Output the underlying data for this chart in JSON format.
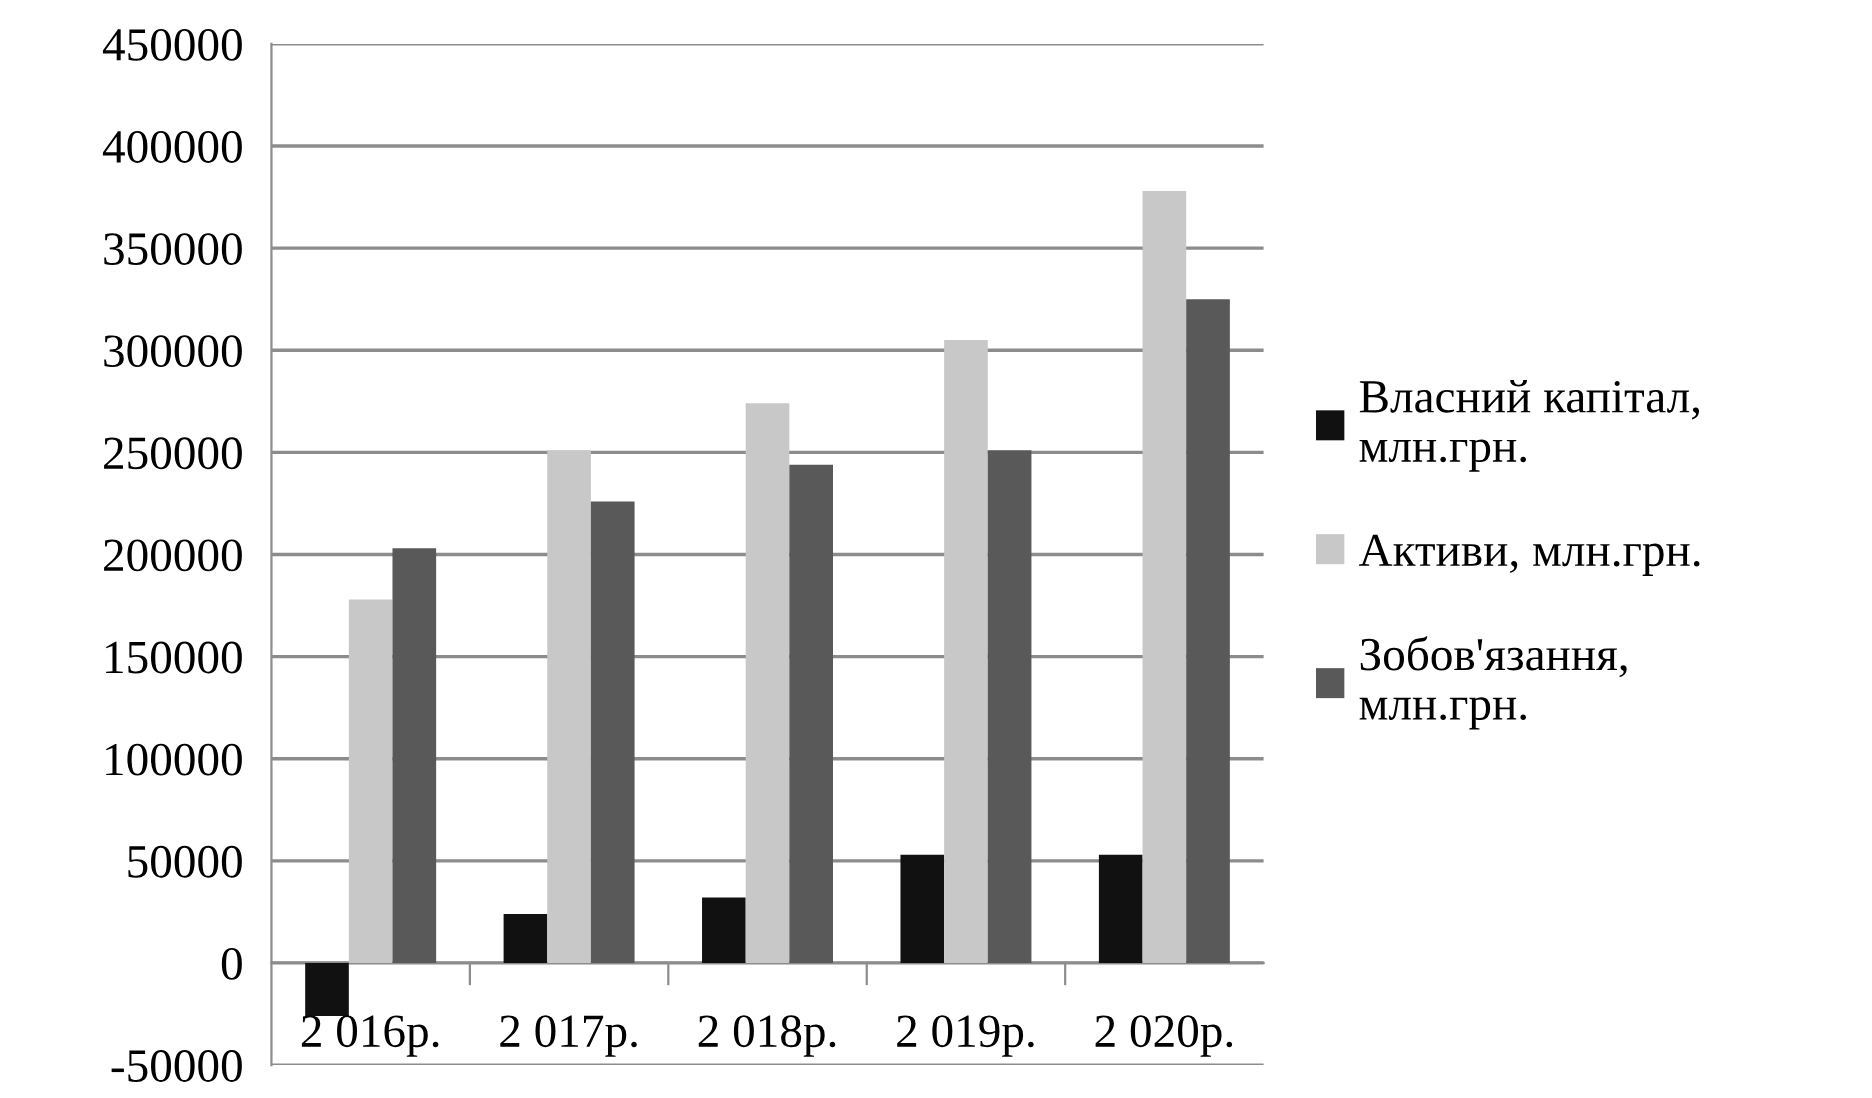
{
  "chart_data": {
    "type": "bar",
    "categories": [
      "2 016р.",
      "2 017р.",
      "2 018р.",
      "2 019р.",
      "2 020р."
    ],
    "series": [
      {
        "name": "Власний капітал,\nмлн.грн.",
        "color": "#111111",
        "values": [
          -26000,
          24000,
          32000,
          53000,
          53000
        ]
      },
      {
        "name": "Активи, млн.грн.",
        "color": "#c8c8c8",
        "values": [
          178000,
          251000,
          274000,
          305000,
          378000
        ]
      },
      {
        "name": "Зобов'язання,\nмлн.грн.",
        "color": "#595959",
        "values": [
          203000,
          226000,
          244000,
          251000,
          325000
        ]
      }
    ],
    "ylim": [
      -50000,
      450000
    ],
    "yticks": [
      -50000,
      0,
      50000,
      100000,
      150000,
      200000,
      250000,
      300000,
      350000,
      400000,
      450000
    ],
    "grid": "y",
    "legend": "right"
  }
}
